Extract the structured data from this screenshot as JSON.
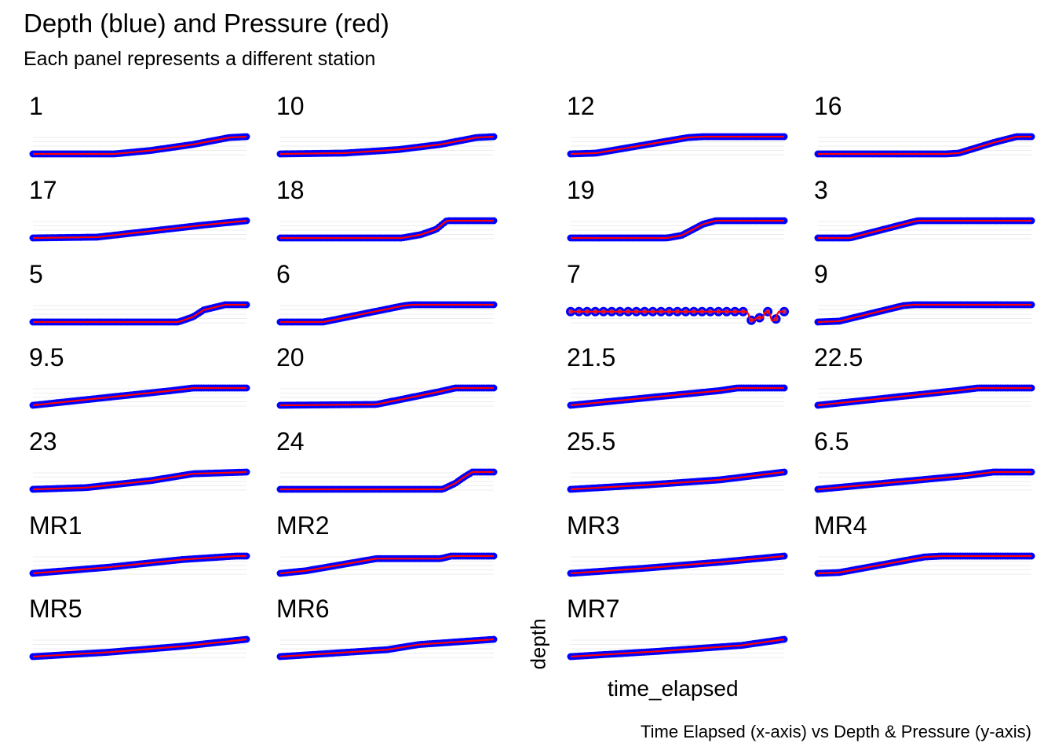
{
  "title": "Depth (blue) and Pressure (red)",
  "subtitle": "Each panel represents a different station",
  "caption": "Time Elapsed (x-axis) vs Depth & Pressure (y-axis)",
  "colors": {
    "depth": "#0000ff",
    "pressure": "#ff0000",
    "grid": "#ececec"
  },
  "chart_data": {
    "type": "line",
    "facet": "station",
    "xlabel": "time_elapsed",
    "ylabel": "depth",
    "grid": true,
    "legend": "none",
    "series_meta": [
      {
        "measure": "depth",
        "color": "#0000ff",
        "mark": "points"
      },
      {
        "measure": "pressure",
        "color": "#ff0000",
        "mark": "line"
      }
    ],
    "value_scale": "relative (0 = bottom of panel, 1 = top), shared time axis 0-1",
    "panels": [
      {
        "station": "1",
        "x": [
          0,
          0.38,
          0.55,
          0.75,
          0.92,
          1
        ],
        "y": [
          0,
          0,
          0.2,
          0.55,
          0.95,
          1
        ]
      },
      {
        "station": "10",
        "x": [
          0,
          0.3,
          0.55,
          0.75,
          0.92,
          1
        ],
        "y": [
          0,
          0.05,
          0.25,
          0.55,
          0.95,
          1
        ]
      },
      {
        "station": "12",
        "x": [
          0,
          0.12,
          0.55,
          0.62,
          1
        ],
        "y": [
          0,
          0.05,
          0.95,
          1,
          1
        ]
      },
      {
        "station": "16",
        "x": [
          0,
          0.6,
          0.66,
          0.82,
          0.93,
          1
        ],
        "y": [
          0,
          0,
          0.05,
          0.65,
          1,
          1
        ]
      },
      {
        "station": "17",
        "x": [
          0,
          0.3,
          0.55,
          0.8,
          1
        ],
        "y": [
          0,
          0.05,
          0.4,
          0.75,
          1
        ]
      },
      {
        "station": "18",
        "x": [
          0,
          0.57,
          0.66,
          0.73,
          0.78,
          1
        ],
        "y": [
          0,
          0,
          0.2,
          0.5,
          1,
          1
        ]
      },
      {
        "station": "19",
        "x": [
          0,
          0.45,
          0.52,
          0.62,
          0.68,
          1
        ],
        "y": [
          0,
          0,
          0.15,
          0.8,
          1,
          1
        ]
      },
      {
        "station": "3",
        "x": [
          0,
          0.15,
          0.45,
          0.47,
          1
        ],
        "y": [
          0,
          0,
          0.95,
          1,
          1
        ]
      },
      {
        "station": "5",
        "x": [
          0,
          0.68,
          0.75,
          0.8,
          0.9,
          1
        ],
        "y": [
          0,
          0,
          0.3,
          0.7,
          1,
          1
        ]
      },
      {
        "station": "6",
        "x": [
          0,
          0.2,
          0.58,
          0.62,
          1
        ],
        "y": [
          0,
          0,
          0.95,
          1,
          1
        ]
      },
      {
        "station": "7",
        "x": [
          0,
          0.83,
          0.84,
          0.86,
          0.87,
          0.9,
          0.91,
          0.93,
          0.94,
          0.96,
          0.97,
          1
        ],
        "y": [
          0.6,
          0.6,
          0.1,
          0.1,
          0.25,
          0.25,
          0.6,
          0.6,
          0.1,
          0.1,
          0.6,
          0.6
        ]
      },
      {
        "station": "9",
        "x": [
          0,
          0.1,
          0.4,
          0.45,
          1
        ],
        "y": [
          0,
          0.05,
          0.95,
          1,
          1
        ]
      },
      {
        "station": "9.5",
        "x": [
          0,
          0.65,
          0.75,
          1
        ],
        "y": [
          0,
          0.85,
          1,
          1
        ]
      },
      {
        "station": "20",
        "x": [
          0,
          0.45,
          0.75,
          0.82,
          1
        ],
        "y": [
          0,
          0.05,
          0.8,
          1,
          1
        ]
      },
      {
        "station": "21.5",
        "x": [
          0,
          0.7,
          0.78,
          1
        ],
        "y": [
          0,
          0.85,
          1,
          1
        ]
      },
      {
        "station": "22.5",
        "x": [
          0,
          0.65,
          0.75,
          1
        ],
        "y": [
          0,
          0.85,
          1,
          1
        ]
      },
      {
        "station": "23",
        "x": [
          0,
          0.25,
          0.55,
          0.75,
          1
        ],
        "y": [
          0,
          0.1,
          0.5,
          0.9,
          1
        ]
      },
      {
        "station": "24",
        "x": [
          0,
          0.76,
          0.82,
          0.86,
          0.9,
          1
        ],
        "y": [
          0,
          0,
          0.35,
          0.7,
          1,
          1
        ]
      },
      {
        "station": "25.5",
        "x": [
          0,
          0.35,
          0.7,
          1
        ],
        "y": [
          0,
          0.25,
          0.55,
          1
        ]
      },
      {
        "station": "6.5",
        "x": [
          0,
          0.35,
          0.7,
          0.82,
          1
        ],
        "y": [
          0,
          0.4,
          0.8,
          1,
          1
        ]
      },
      {
        "station": "MR1",
        "x": [
          0,
          0.35,
          0.7,
          0.95,
          1
        ],
        "y": [
          0,
          0.35,
          0.8,
          1,
          1
        ]
      },
      {
        "station": "MR2",
        "x": [
          0,
          0.12,
          0.45,
          0.75,
          0.8,
          1
        ],
        "y": [
          0,
          0.15,
          0.85,
          0.85,
          1,
          1
        ]
      },
      {
        "station": "MR3",
        "x": [
          0,
          0.35,
          0.7,
          1
        ],
        "y": [
          0,
          0.3,
          0.65,
          1
        ]
      },
      {
        "station": "MR4",
        "x": [
          0,
          0.1,
          0.5,
          0.58,
          1
        ],
        "y": [
          0,
          0.05,
          0.95,
          1,
          1
        ]
      },
      {
        "station": "MR5",
        "x": [
          0,
          0.35,
          0.7,
          1
        ],
        "y": [
          0,
          0.25,
          0.6,
          1
        ]
      },
      {
        "station": "MR6",
        "x": [
          0,
          0.5,
          0.65,
          1
        ],
        "y": [
          0,
          0.4,
          0.7,
          1
        ]
      },
      {
        "station": "MR7",
        "x": [
          0,
          0.4,
          0.8,
          1
        ],
        "y": [
          0,
          0.3,
          0.65,
          1
        ]
      }
    ]
  }
}
